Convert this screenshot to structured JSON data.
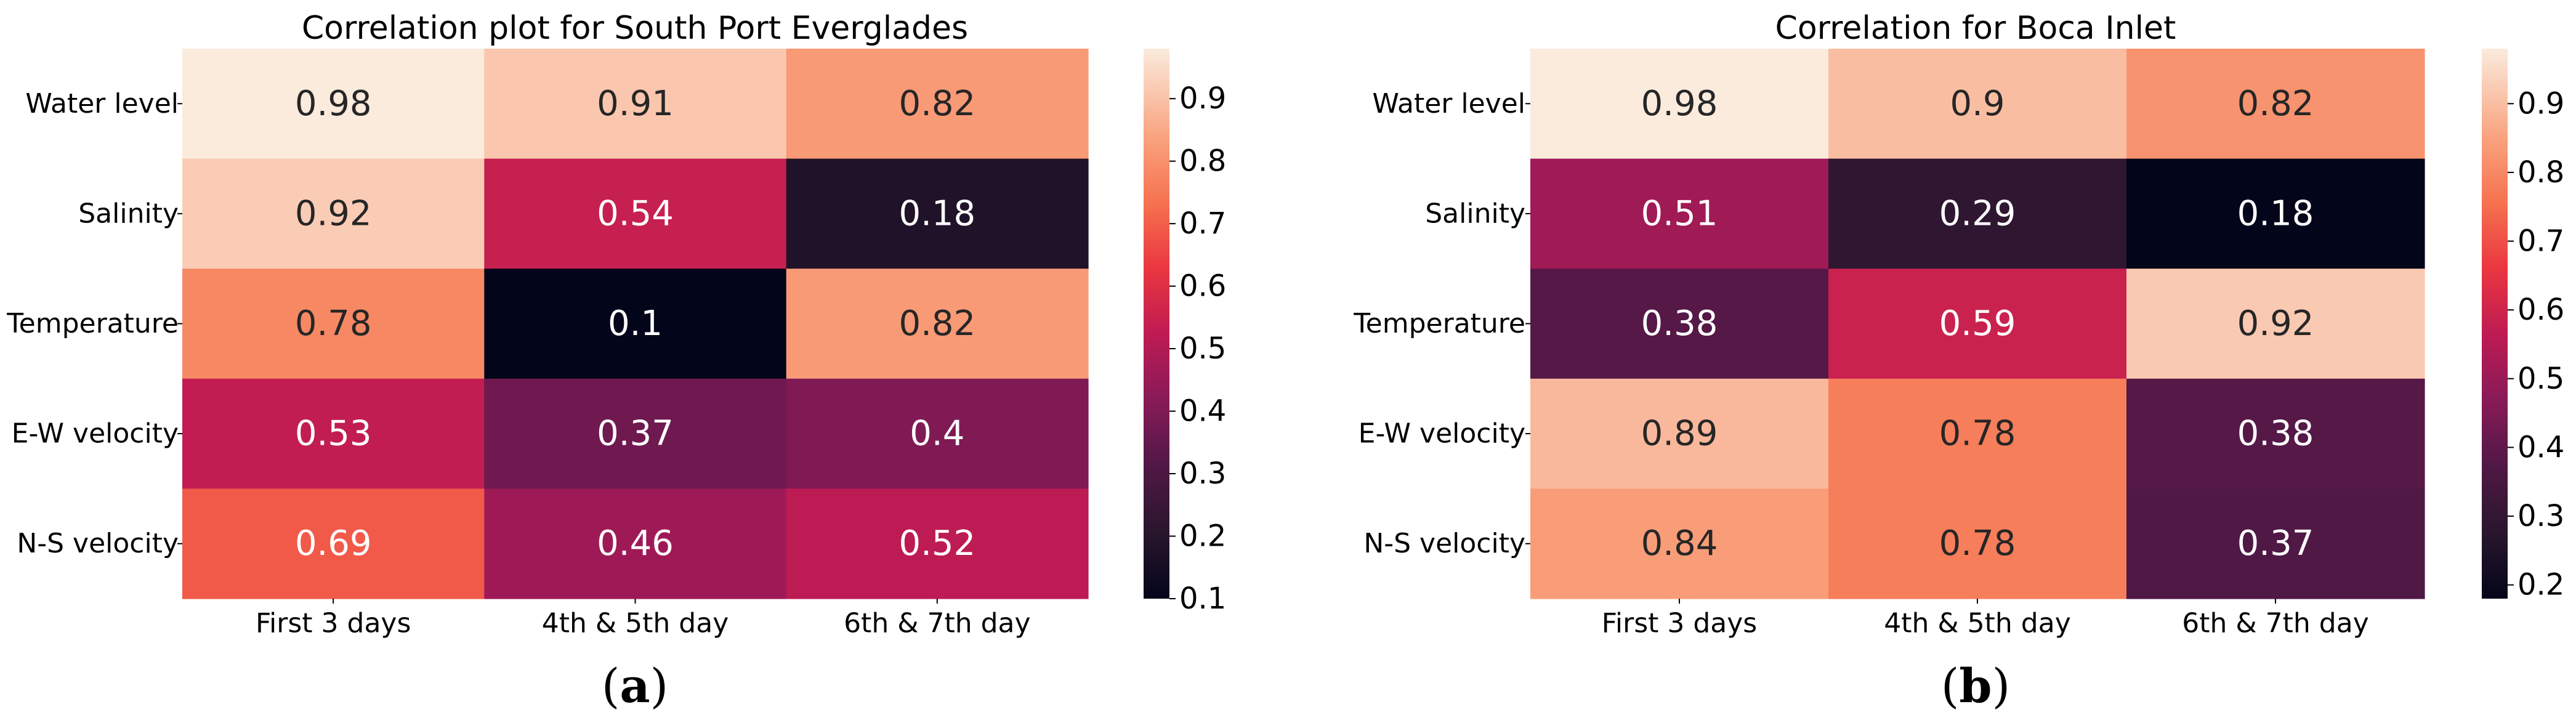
{
  "chart_data": [
    {
      "type": "heatmap",
      "panel_label": "a",
      "title": "Correlation plot for South Port Everglades",
      "rows": [
        "Water level",
        "Salinity",
        "Temperature",
        "E-W velocity",
        "N-S velocity"
      ],
      "columns": [
        "First 3 days",
        "4th & 5th day",
        "6th & 7th day"
      ],
      "values": [
        [
          0.98,
          0.91,
          0.82
        ],
        [
          0.92,
          0.54,
          0.18
        ],
        [
          0.78,
          0.1,
          0.82
        ],
        [
          0.53,
          0.37,
          0.4
        ],
        [
          0.69,
          0.46,
          0.52
        ]
      ],
      "colormap": "rocket",
      "vmin": 0.1,
      "vmax": 0.98,
      "colorbar_ticks": [
        0.1,
        0.2,
        0.3,
        0.4,
        0.5,
        0.6,
        0.7,
        0.8,
        0.9
      ]
    },
    {
      "type": "heatmap",
      "panel_label": "b",
      "title": "Correlation for Boca Inlet",
      "rows": [
        "Water level",
        "Salinity",
        "Temperature",
        "E-W velocity",
        "N-S velocity"
      ],
      "columns": [
        "First 3 days",
        "4th & 5th day",
        "6th & 7th day"
      ],
      "values": [
        [
          0.98,
          0.9,
          0.82
        ],
        [
          0.51,
          0.29,
          0.18
        ],
        [
          0.38,
          0.59,
          0.92
        ],
        [
          0.89,
          0.78,
          0.38
        ],
        [
          0.84,
          0.78,
          0.37
        ]
      ],
      "colormap": "rocket",
      "vmin": 0.18,
      "vmax": 0.98,
      "colorbar_ticks": [
        0.2,
        0.3,
        0.4,
        0.5,
        0.6,
        0.7,
        0.8,
        0.9
      ]
    }
  ],
  "panel_labels": {
    "a": {
      "open": "(",
      "letter": "a",
      "close": ")"
    },
    "b": {
      "open": "(",
      "letter": "b",
      "close": ")"
    }
  }
}
